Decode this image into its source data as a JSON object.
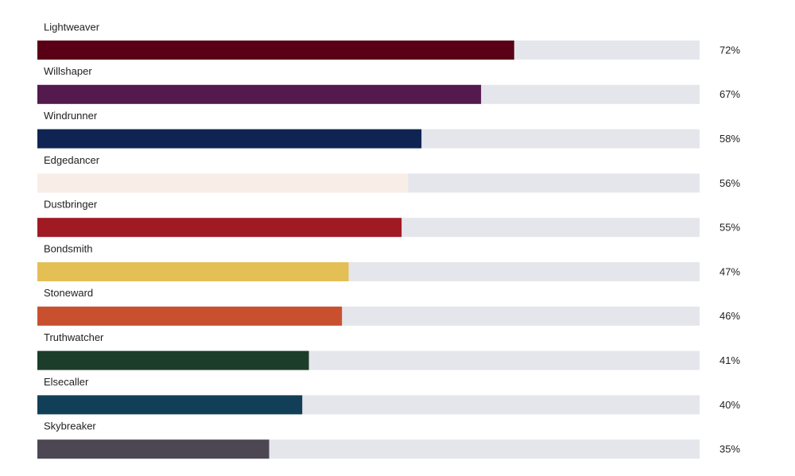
{
  "chart_data": {
    "type": "bar",
    "categories": [
      "Lightweaver",
      "Willshaper",
      "Windrunner",
      "Edgedancer",
      "Dustbringer",
      "Bondsmith",
      "Stoneward",
      "Truthwatcher",
      "Elsecaller",
      "Skybreaker"
    ],
    "values": [
      72,
      67,
      58,
      56,
      55,
      47,
      46,
      41,
      40,
      35
    ],
    "value_labels": [
      "72%",
      "67%",
      "58%",
      "56%",
      "55%",
      "47%",
      "46%",
      "41%",
      "40%",
      "35%"
    ],
    "colors": [
      "#5a0016",
      "#541a4e",
      "#0f2452",
      "#f9ede8",
      "#a01a24",
      "#e4bf55",
      "#c9502f",
      "#1c3d2a",
      "#123f58",
      "#4d4753"
    ],
    "track_color": "#e4e6ec",
    "xlim": [
      0,
      100
    ]
  }
}
